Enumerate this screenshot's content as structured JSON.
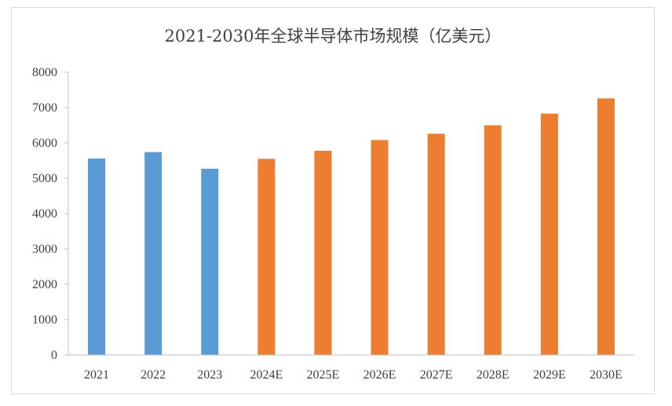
{
  "chart_data": {
    "type": "bar",
    "title": "2021-2030年全球半导体市场规模（亿美元）",
    "xlabel": "",
    "ylabel": "",
    "categories": [
      "2021",
      "2022",
      "2023",
      "2024E",
      "2025E",
      "2026E",
      "2027E",
      "2028E",
      "2029E",
      "2030E"
    ],
    "values": [
      5560,
      5740,
      5270,
      5550,
      5780,
      6080,
      6260,
      6500,
      6830,
      7260
    ],
    "bar_colors": [
      "#5b9bd5",
      "#5b9bd5",
      "#5b9bd5",
      "#ed7d31",
      "#ed7d31",
      "#ed7d31",
      "#ed7d31",
      "#ed7d31",
      "#ed7d31",
      "#ed7d31"
    ],
    "ylim": [
      0,
      8000
    ],
    "yticks": [
      "0",
      "1000",
      "2000",
      "3000",
      "4000",
      "5000",
      "6000",
      "7000",
      "8000"
    ],
    "grid": false,
    "legend": "none"
  }
}
